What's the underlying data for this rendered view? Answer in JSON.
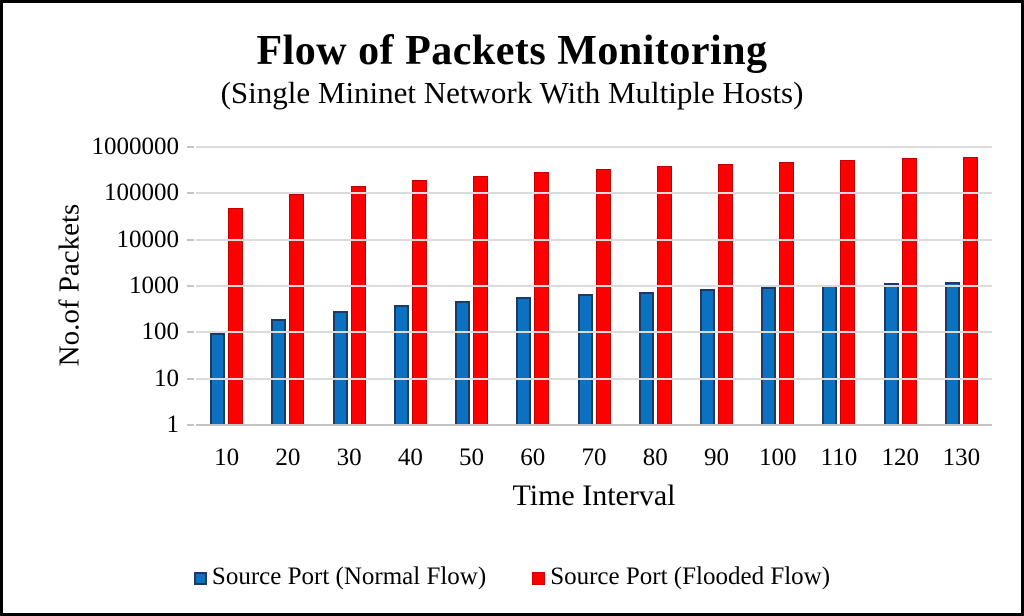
{
  "chart_data": {
    "type": "bar",
    "title": "Flow of Packets Monitoring",
    "subtitle": "(Single Mininet Network With Multiple Hosts)",
    "xlabel": "Time Interval",
    "ylabel": "No.of Packets",
    "y_scale": "log10",
    "ylim": [
      1,
      1000000
    ],
    "y_ticks": [
      1000000,
      100000,
      10000,
      1000,
      100,
      10,
      1
    ],
    "grid": true,
    "grid_color": "#D9D9D9",
    "legend_position": "bottom",
    "categories": [
      "10",
      "20",
      "30",
      "40",
      "50",
      "60",
      "70",
      "80",
      "90",
      "100",
      "110",
      "120",
      "130"
    ],
    "series": [
      {
        "name": "Source Port (Normal Flow)",
        "color": "#0B71C1",
        "border_color": "#1F3864",
        "values": [
          100,
          200,
          300,
          400,
          500,
          600,
          700,
          800,
          900,
          1000,
          1100,
          1200,
          1300
        ]
      },
      {
        "name": "Source Port (Flooded Flow)",
        "color": "#FE0000",
        "border_color": "#C00000",
        "values": [
          50000,
          100000,
          150000,
          200000,
          250000,
          300000,
          350000,
          400000,
          450000,
          500000,
          550000,
          600000,
          650000
        ]
      }
    ]
  },
  "frame": {
    "background": "#FFFFFF",
    "border_color": "#000000"
  }
}
